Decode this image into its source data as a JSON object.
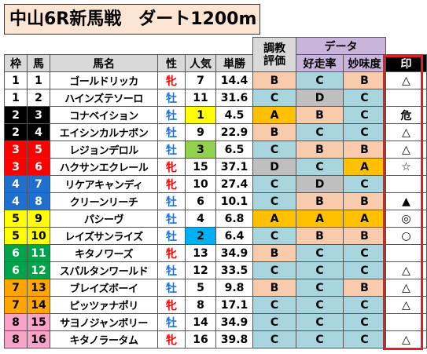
{
  "title": "中山6R新馬戦　ダート1200m",
  "headers": {
    "training": [
      "調教",
      "評価"
    ],
    "data_group": "データ",
    "waku": "枠",
    "uma": "馬",
    "horse_name": "馬名",
    "sex": "性",
    "popularity": "人気",
    "odds": "単勝",
    "win_rate": "好走率",
    "taste": "妙味度",
    "mark": "印"
  },
  "rows": [
    {
      "waku": "1",
      "num": "1",
      "name": "ゴールドリッカ",
      "sex": "牝",
      "pop": "7",
      "odds": "14.4",
      "training": "B",
      "win_rate": "C",
      "taste": "B",
      "mark": "△"
    },
    {
      "waku": "1",
      "num": "2",
      "name": "ハインズテソーロ",
      "sex": "牡",
      "pop": "11",
      "odds": "31.6",
      "training": "C",
      "win_rate": "D",
      "taste": "C",
      "mark": ""
    },
    {
      "waku": "2",
      "num": "3",
      "name": "コナベイション",
      "sex": "牡",
      "pop": "1",
      "odds": "4.5",
      "training": "A",
      "win_rate": "B",
      "taste": "C",
      "mark": "危"
    },
    {
      "waku": "2",
      "num": "4",
      "name": "エイシンカルナボン",
      "sex": "牡",
      "pop": "9",
      "odds": "22.9",
      "training": "B",
      "win_rate": "C",
      "taste": "C",
      "mark": "△"
    },
    {
      "waku": "3",
      "num": "5",
      "name": "レジョンデロル",
      "sex": "牡",
      "pop": "3",
      "odds": "6.5",
      "training": "C",
      "win_rate": "B",
      "taste": "B",
      "mark": "△"
    },
    {
      "waku": "3",
      "num": "6",
      "name": "ハクサンエクレール",
      "sex": "牝",
      "pop": "15",
      "odds": "37.1",
      "training": "D",
      "win_rate": "C",
      "taste": "A",
      "mark": "☆"
    },
    {
      "waku": "4",
      "num": "7",
      "name": "リケアキャンディ",
      "sex": "牝",
      "pop": "10",
      "odds": "27.4",
      "training": "C",
      "win_rate": "D",
      "taste": "C",
      "mark": ""
    },
    {
      "waku": "4",
      "num": "8",
      "name": "クリーンリーチ",
      "sex": "牡",
      "pop": "6",
      "odds": "10.1",
      "training": "C",
      "win_rate": "B",
      "taste": "B",
      "mark": "▲"
    },
    {
      "waku": "5",
      "num": "9",
      "name": "パシーヴ",
      "sex": "牡",
      "pop": "4",
      "odds": "6.8",
      "training": "A",
      "win_rate": "A",
      "taste": "A",
      "mark": "◎"
    },
    {
      "waku": "5",
      "num": "10",
      "name": "レイズサンライズ",
      "sex": "牡",
      "pop": "2",
      "odds": "6.4",
      "training": "C",
      "win_rate": "B",
      "taste": "B",
      "mark": "○"
    },
    {
      "waku": "6",
      "num": "11",
      "name": "キタノワーズ",
      "sex": "牝",
      "pop": "13",
      "odds": "34.9",
      "training": "B",
      "win_rate": "C",
      "taste": "C",
      "mark": ""
    },
    {
      "waku": "6",
      "num": "12",
      "name": "スパルタンワールド",
      "sex": "牡",
      "pop": "12",
      "odds": "33.5",
      "training": "C",
      "win_rate": "C",
      "taste": "C",
      "mark": "△"
    },
    {
      "waku": "7",
      "num": "13",
      "name": "ブレイズボーイ",
      "sex": "牡",
      "pop": "5",
      "odds": "9.8",
      "training": "B",
      "win_rate": "C",
      "taste": "B",
      "mark": "△"
    },
    {
      "waku": "7",
      "num": "14",
      "name": "ピッツァナポリ",
      "sex": "牝",
      "pop": "8",
      "odds": "17.1",
      "training": "C",
      "win_rate": "C",
      "taste": "C",
      "mark": "△"
    },
    {
      "waku": "8",
      "num": "15",
      "name": "サヨノジャンボリー",
      "sex": "牡",
      "pop": "14",
      "odds": "34.9",
      "training": "C",
      "win_rate": "C",
      "taste": "C",
      "mark": ""
    },
    {
      "waku": "8",
      "num": "16",
      "name": "キタノラータム",
      "sex": "牝",
      "pop": "16",
      "odds": "39.8",
      "training": "C",
      "win_rate": "C",
      "taste": "C",
      "mark": "△"
    }
  ],
  "colors": {
    "frame_colors": {
      "1": "#ffffff",
      "2": "#000000",
      "3": "#ff0000",
      "4": "#1f6fd0",
      "5": "#ffff00",
      "6": "#00a34a",
      "7": "#ffa500",
      "8": "#f7a3c9"
    },
    "grade_A": "#ffc000",
    "grade_B": "#f8cbad",
    "grade_C": "#a9d5df",
    "grade_D": "#bfbfbf",
    "mark_frame": "#e02020"
  }
}
